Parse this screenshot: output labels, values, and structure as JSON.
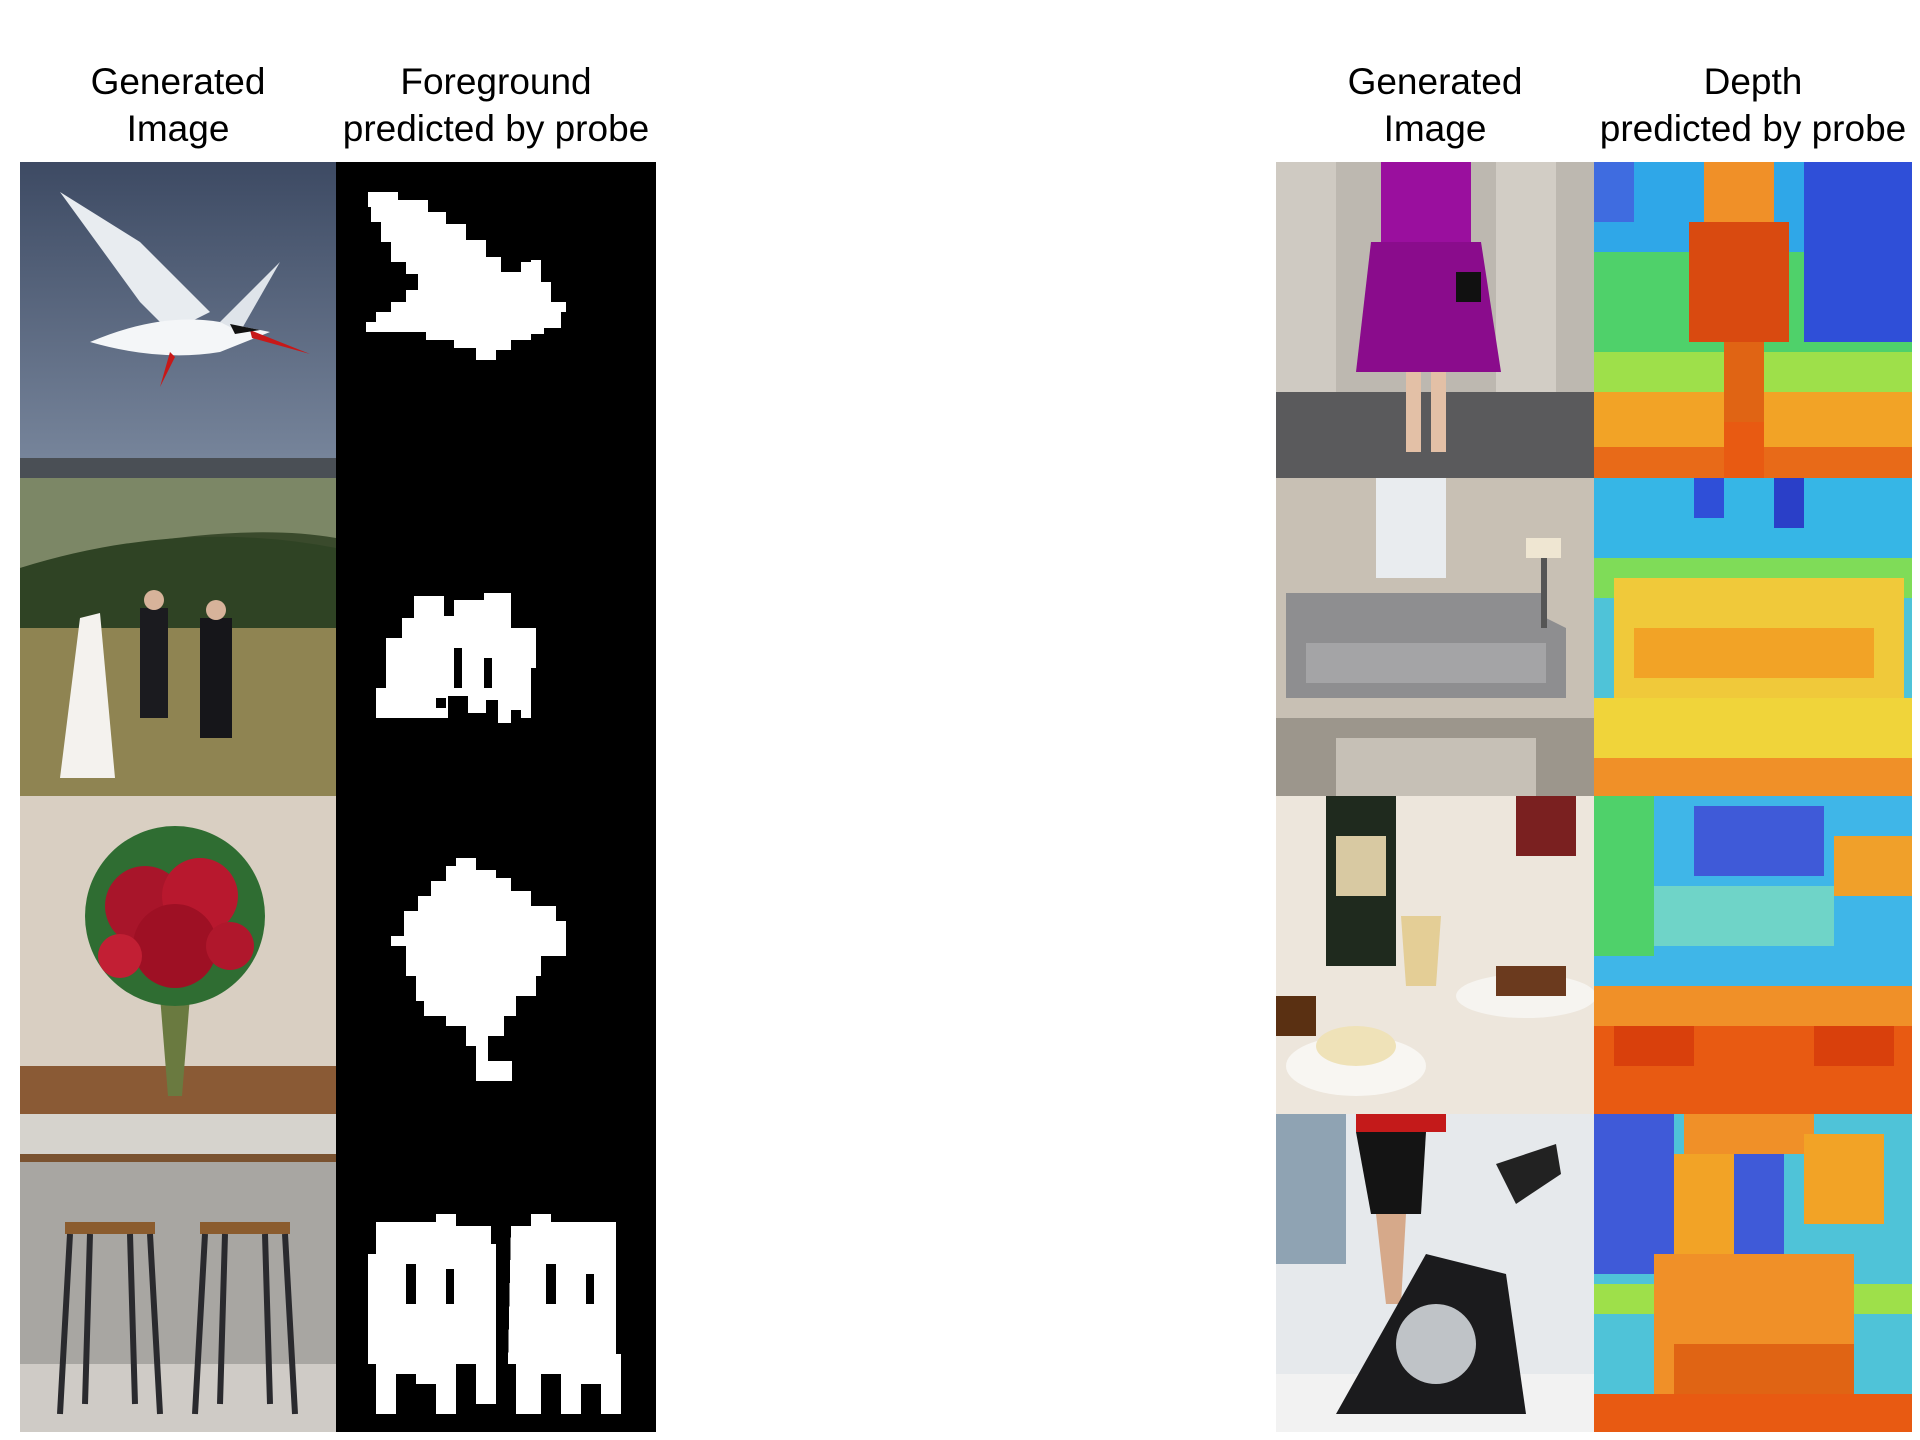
{
  "figure": {
    "left_panel": {
      "headers": {
        "image_line1": "Generated",
        "image_line2": "Image",
        "probe_line1": "Foreground",
        "probe_line2": "predicted by probe"
      },
      "rows": [
        {
          "image_icon": "flying-tern-photo",
          "probe_icon": "bird-foreground-mask"
        },
        {
          "image_icon": "wedding-couple-hillside-photo",
          "probe_icon": "people-foreground-mask"
        },
        {
          "image_icon": "red-rose-bouquet-photo",
          "probe_icon": "bouquet-foreground-mask"
        },
        {
          "image_icon": "bar-stools-kitchen-photo",
          "probe_icon": "stools-foreground-mask"
        }
      ]
    },
    "right_panel": {
      "headers": {
        "image_line1": "Generated",
        "image_line2": "Image",
        "probe_line1": "Depth",
        "probe_line2": "predicted by probe"
      },
      "rows": [
        {
          "image_icon": "woman-purple-dress-photo",
          "probe_icon": "depth-heatmap-woman"
        },
        {
          "image_icon": "grey-sofa-living-room-photo",
          "probe_icon": "depth-heatmap-sofa"
        },
        {
          "image_icon": "champagne-afternoon-tea-photo",
          "probe_icon": "depth-heatmap-tea"
        },
        {
          "image_icon": "exercise-bike-photo",
          "probe_icon": "depth-heatmap-bike"
        }
      ]
    },
    "colors": {
      "mask_background": "#000000",
      "mask_foreground": "#ffffff",
      "depth_far": "#2a3fc8",
      "depth_mid": "#4fd16a",
      "depth_near": "#d94a10"
    }
  }
}
